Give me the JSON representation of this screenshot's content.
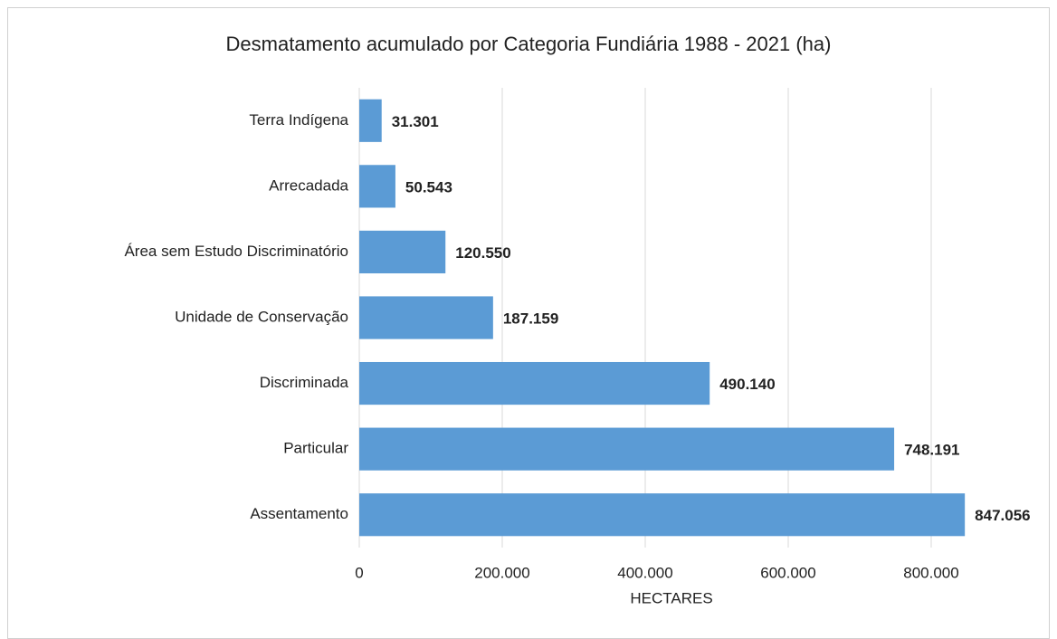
{
  "chart_data": {
    "type": "bar",
    "orientation": "horizontal",
    "title": "Desmatamento acumulado por  Categoria Fundiária 1988 - 2021 (ha)",
    "x_label": "HECTARES",
    "categories": [
      "Terra Indígena",
      "Arrecadada",
      "Área sem Estudo Discriminatório",
      "Unidade de Conservação",
      "Discriminada",
      "Particular",
      "Assentamento"
    ],
    "values": [
      31301,
      50543,
      120550,
      187159,
      490140,
      748191,
      847056
    ],
    "value_labels": [
      "31.301",
      "50.543",
      "120.550",
      "187.159",
      "490.140",
      "748.191",
      "847.056"
    ],
    "color": "#5b9bd5",
    "xlim": [
      0,
      800000
    ],
    "xticks": [
      0,
      {
        "value": 200000,
        "label": "200.000"
      },
      {
        "value": 400000,
        "label": "400.000"
      },
      {
        "value": 600000,
        "label": "600.000"
      },
      {
        "value": 800000,
        "label": "800.000"
      }
    ],
    "grid": true
  }
}
